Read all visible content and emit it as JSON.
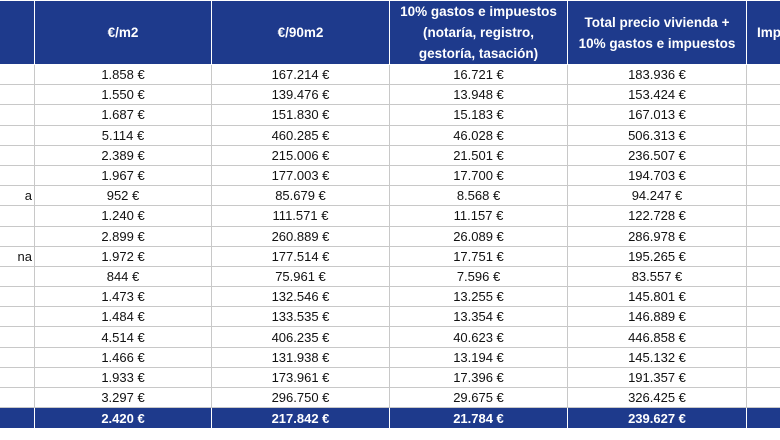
{
  "headers": [
    "",
    "€/m2",
    "€/90m2",
    "10% gastos e impuestos (notaría, registro, gestoría, tasación)",
    "Total precio vivienda + 10% gastos e impuestos",
    "Imp con"
  ],
  "rows": [
    {
      "name": "",
      "m2": "1.858 €",
      "m90": "167.214 €",
      "gastos": "16.721 €",
      "total": "183.936 €"
    },
    {
      "name": "",
      "m2": "1.550 €",
      "m90": "139.476 €",
      "gastos": "13.948 €",
      "total": "153.424 €"
    },
    {
      "name": "",
      "m2": "1.687 €",
      "m90": "151.830 €",
      "gastos": "15.183 €",
      "total": "167.013 €"
    },
    {
      "name": "",
      "m2": "5.114 €",
      "m90": "460.285 €",
      "gastos": "46.028 €",
      "total": "506.313 €"
    },
    {
      "name": "",
      "m2": "2.389 €",
      "m90": "215.006 €",
      "gastos": "21.501 €",
      "total": "236.507 €"
    },
    {
      "name": "",
      "m2": "1.967 €",
      "m90": "177.003 €",
      "gastos": "17.700 €",
      "total": "194.703 €"
    },
    {
      "name": "a",
      "m2": "952 €",
      "m90": "85.679 €",
      "gastos": "8.568 €",
      "total": "94.247 €"
    },
    {
      "name": "",
      "m2": "1.240 €",
      "m90": "111.571 €",
      "gastos": "11.157 €",
      "total": "122.728 €"
    },
    {
      "name": "",
      "m2": "2.899 €",
      "m90": "260.889 €",
      "gastos": "26.089 €",
      "total": "286.978 €"
    },
    {
      "name": "na",
      "m2": "1.972 €",
      "m90": "177.514 €",
      "gastos": "17.751 €",
      "total": "195.265 €"
    },
    {
      "name": "",
      "m2": "844 €",
      "m90": "75.961 €",
      "gastos": "7.596 €",
      "total": "83.557 €"
    },
    {
      "name": "",
      "m2": "1.473 €",
      "m90": "132.546 €",
      "gastos": "13.255 €",
      "total": "145.801 €"
    },
    {
      "name": "",
      "m2": "1.484 €",
      "m90": "133.535 €",
      "gastos": "13.354 €",
      "total": "146.889 €"
    },
    {
      "name": "",
      "m2": "4.514 €",
      "m90": "406.235 €",
      "gastos": "40.623 €",
      "total": "446.858 €"
    },
    {
      "name": "",
      "m2": "1.466 €",
      "m90": "131.938 €",
      "gastos": "13.194 €",
      "total": "145.132 €"
    },
    {
      "name": "",
      "m2": "1.933 €",
      "m90": "173.961 €",
      "gastos": "17.396 €",
      "total": "191.357 €"
    },
    {
      "name": "",
      "m2": "3.297 €",
      "m90": "296.750 €",
      "gastos": "29.675 €",
      "total": "326.425 €"
    }
  ],
  "total_row": {
    "name": "",
    "m2": "2.420 €",
    "m90": "217.842 €",
    "gastos": "21.784 €",
    "total": "239.627 €"
  },
  "colors": {
    "header_bg": "#1e3a8c",
    "header_text": "#ffffff",
    "grid": "#c8c8c8"
  }
}
